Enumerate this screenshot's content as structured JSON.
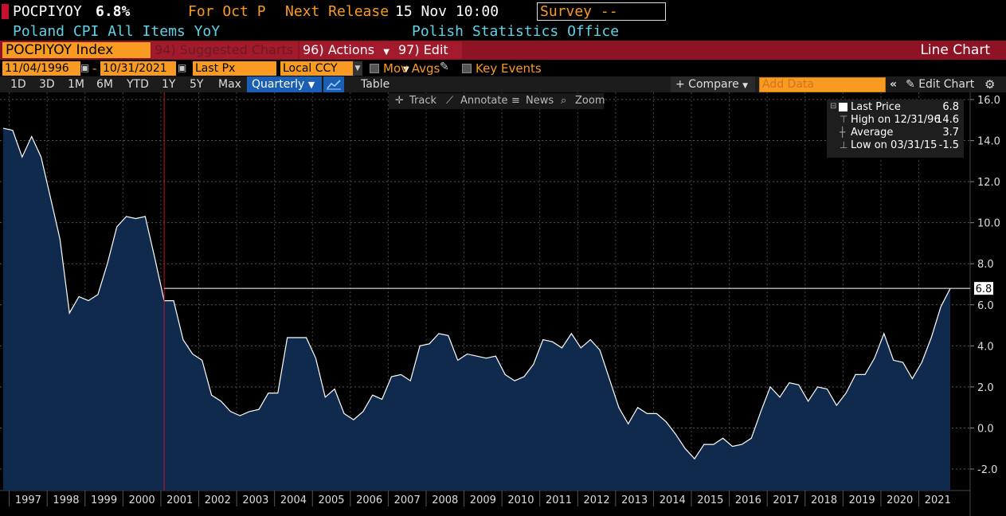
{
  "header": {
    "ticker": "POCPIYOY",
    "value": "6.8%",
    "for_label": "For Oct P",
    "next_release_label": "Next Release",
    "next_release_value": "15 Nov 10:00",
    "survey_label": "Survey --",
    "description": "Poland CPI All Items YoY",
    "source": "Polish Statistics Office"
  },
  "command_bar": {
    "index_field": "POCPIYOY Index",
    "suggested": "94) Suggested Charts",
    "actions": "96) Actions",
    "edit": "97) Edit",
    "chart_type": "Line Chart"
  },
  "options_row": {
    "start_date": "11/04/1996",
    "dash": "-",
    "end_date": "10/31/2021",
    "field": "Last Px",
    "currency": "Local CCY",
    "mov_avgs": "Mov Avgs",
    "key_events": "Key Events"
  },
  "toolbar": {
    "ranges": [
      "1D",
      "3D",
      "1M",
      "6M",
      "YTD",
      "1Y",
      "5Y",
      "Max"
    ],
    "period": "Quarterly",
    "table": "Table",
    "compare": "+ Compare",
    "add_data_placeholder": "Add Data",
    "edit_chart": "Edit Chart"
  },
  "chart_tools": {
    "track": "Track",
    "annotate": "Annotate",
    "news": "News",
    "zoom": "Zoom"
  },
  "legend": {
    "last_price_label": "Last Price",
    "last_price_value": "6.8",
    "high_label": "High on 12/31/96",
    "high_value": "14.6",
    "average_label": "Average",
    "average_value": "3.7",
    "low_label": "Low on 03/31/15",
    "low_value": "-1.5"
  },
  "colors": {
    "accent_orange": "#f99b22",
    "bar_red": "#8e1425",
    "series_fill": "#0f2a4d",
    "line": "#ffffff",
    "selected_blue": "#1a5fb4"
  },
  "chart_data": {
    "type": "area",
    "ylim": [
      -3.0,
      16.0
    ],
    "yticks": [
      "16.0",
      "14.0",
      "12.0",
      "10.0",
      "8.0",
      "6.0",
      "4.0",
      "2.0",
      "0.0",
      "-2.0"
    ],
    "x_labels": [
      "1997",
      "1998",
      "1999",
      "2000",
      "2001",
      "2002",
      "2003",
      "2004",
      "2005",
      "2006",
      "2007",
      "2008",
      "2009",
      "2010",
      "2011",
      "2012",
      "2013",
      "2014",
      "2015",
      "2016",
      "2017",
      "2018",
      "2019",
      "2020",
      "2021"
    ],
    "last_value_label": "6.8",
    "grid": true,
    "series": [
      {
        "values": [
          14.6,
          14.5,
          13.2,
          14.2,
          13.2,
          11.2,
          9.2,
          5.6,
          6.4,
          6.2,
          6.5,
          8.0,
          9.8,
          10.3,
          10.2,
          10.3,
          8.3,
          6.2,
          6.2,
          4.3,
          3.6,
          3.3,
          1.6,
          1.3,
          0.8,
          0.6,
          0.8,
          0.9,
          1.7,
          1.7,
          4.4,
          4.4,
          4.4,
          3.4,
          1.5,
          1.9,
          0.7,
          0.4,
          0.8,
          1.6,
          1.4,
          2.5,
          2.6,
          2.3,
          4.0,
          4.1,
          4.6,
          4.5,
          3.3,
          3.6,
          3.5,
          3.4,
          3.5,
          2.6,
          2.3,
          2.5,
          3.1,
          4.3,
          4.2,
          3.9,
          4.6,
          3.9,
          4.3,
          3.8,
          2.4,
          1.0,
          0.2,
          1.0,
          0.7,
          0.7,
          0.3,
          -0.3,
          -1.0,
          -1.5,
          -0.8,
          -0.8,
          -0.5,
          -0.9,
          -0.8,
          -0.5,
          0.8,
          2.0,
          1.5,
          2.2,
          2.1,
          1.3,
          2.0,
          1.9,
          1.1,
          1.7,
          2.6,
          2.6,
          3.4,
          4.6,
          3.3,
          3.2,
          2.4,
          3.2,
          4.4,
          5.9,
          6.8
        ]
      }
    ]
  }
}
